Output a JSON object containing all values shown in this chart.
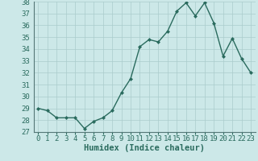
{
  "x": [
    0,
    1,
    2,
    3,
    4,
    5,
    6,
    7,
    8,
    9,
    10,
    11,
    12,
    13,
    14,
    15,
    16,
    17,
    18,
    19,
    20,
    21,
    22,
    23
  ],
  "y": [
    29.0,
    28.8,
    28.2,
    28.2,
    28.2,
    27.3,
    27.9,
    28.2,
    28.8,
    30.3,
    31.5,
    34.2,
    34.8,
    34.6,
    35.5,
    37.2,
    37.9,
    36.8,
    37.9,
    36.2,
    33.4,
    34.9,
    33.2,
    32.0
  ],
  "line_color": "#2a6b5e",
  "marker": "D",
  "marker_size": 2.0,
  "bg_color": "#cce8e8",
  "grid_color": "#aacccc",
  "xlabel": "Humidex (Indice chaleur)",
  "ylim": [
    27,
    38
  ],
  "xlim": [
    -0.5,
    23.5
  ],
  "yticks": [
    27,
    28,
    29,
    30,
    31,
    32,
    33,
    34,
    35,
    36,
    37,
    38
  ],
  "xticks": [
    0,
    1,
    2,
    3,
    4,
    5,
    6,
    7,
    8,
    9,
    10,
    11,
    12,
    13,
    14,
    15,
    16,
    17,
    18,
    19,
    20,
    21,
    22,
    23
  ],
  "xlabel_fontsize": 7.5,
  "tick_fontsize": 6.5,
  "linewidth": 1.0
}
